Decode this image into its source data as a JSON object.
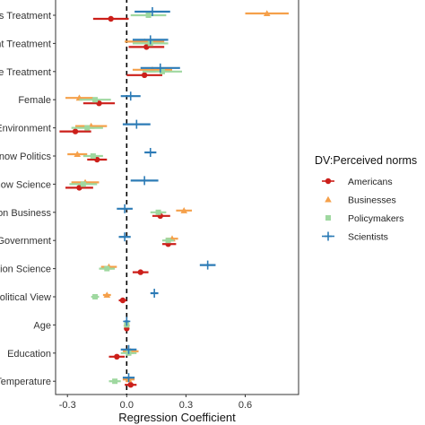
{
  "chart_data": {
    "type": "scatter",
    "subtype": "coefficient-plot-with-error-bars",
    "xlabel": "Regression Coefficient",
    "xlim": [
      -0.36,
      0.87
    ],
    "xticks": [
      -0.3,
      0.0,
      0.3,
      0.6
    ],
    "xtick_labels": [
      "-0.3",
      "0.0",
      "0.3",
      "0.6"
    ],
    "reference_line": 0,
    "grid": false,
    "categories": [
      "ss Treatment",
      "nt Treatment",
      "ce Treatment",
      "Female",
      "Environment",
      "Know Politics",
      "now Science",
      "on Business",
      "oGovernment",
      "tion Science",
      "Political View",
      "Age",
      "Education",
      "Temperature"
    ],
    "legend": {
      "title": "DV:Perceived norms",
      "position": "right",
      "entries": [
        "Americans",
        "Businesses",
        "Policymakers",
        "Scientists"
      ]
    },
    "series": [
      {
        "name": "Americans",
        "color": "#cc1f1a",
        "marker": "circle",
        "points": [
          {
            "y": 0,
            "x": -0.08,
            "lo": -0.17,
            "hi": 0.01
          },
          {
            "y": 1,
            "x": 0.1,
            "lo": 0.01,
            "hi": 0.19
          },
          {
            "y": 2,
            "x": 0.09,
            "lo": 0.0,
            "hi": 0.18
          },
          {
            "y": 3,
            "x": -0.14,
            "lo": -0.22,
            "hi": -0.06
          },
          {
            "y": 4,
            "x": -0.26,
            "lo": -0.34,
            "hi": -0.18
          },
          {
            "y": 5,
            "x": -0.15,
            "lo": -0.2,
            "hi": -0.1
          },
          {
            "y": 6,
            "x": -0.24,
            "lo": -0.31,
            "hi": -0.17
          },
          {
            "y": 7,
            "x": 0.17,
            "lo": 0.13,
            "hi": 0.22
          },
          {
            "y": 8,
            "x": 0.21,
            "lo": 0.18,
            "hi": 0.25
          },
          {
            "y": 9,
            "x": 0.07,
            "lo": 0.03,
            "hi": 0.11
          },
          {
            "y": 10,
            "x": -0.02,
            "lo": -0.04,
            "hi": 0.0
          },
          {
            "y": 11,
            "x": 0.0,
            "lo": -0.01,
            "hi": 0.01
          },
          {
            "y": 12,
            "x": -0.05,
            "lo": -0.09,
            "hi": -0.01
          },
          {
            "y": 13,
            "x": 0.02,
            "lo": -0.01,
            "hi": 0.05
          }
        ]
      },
      {
        "name": "Businesses",
        "color": "#f5a04a",
        "marker": "triangle",
        "points": [
          {
            "y": 0,
            "x": 0.71,
            "lo": 0.6,
            "hi": 0.82
          },
          {
            "y": 1,
            "x": 0.09,
            "lo": -0.01,
            "hi": 0.19
          },
          {
            "y": 2,
            "x": 0.13,
            "lo": 0.03,
            "hi": 0.23
          },
          {
            "y": 3,
            "x": -0.24,
            "lo": -0.31,
            "hi": -0.17
          },
          {
            "y": 4,
            "x": -0.18,
            "lo": -0.26,
            "hi": -0.1
          },
          {
            "y": 5,
            "x": -0.25,
            "lo": -0.3,
            "hi": -0.2
          },
          {
            "y": 6,
            "x": -0.21,
            "lo": -0.28,
            "hi": -0.14
          },
          {
            "y": 7,
            "x": 0.29,
            "lo": 0.25,
            "hi": 0.33
          },
          {
            "y": 8,
            "x": 0.23,
            "lo": 0.2,
            "hi": 0.26
          },
          {
            "y": 9,
            "x": -0.09,
            "lo": -0.13,
            "hi": -0.05
          },
          {
            "y": 10,
            "x": -0.1,
            "lo": -0.12,
            "hi": -0.08
          },
          {
            "y": 11,
            "x": 0.0,
            "lo": -0.01,
            "hi": 0.01
          },
          {
            "y": 12,
            "x": 0.02,
            "lo": -0.02,
            "hi": 0.06
          },
          {
            "y": 13,
            "x": 0.01,
            "lo": -0.02,
            "hi": 0.04
          }
        ]
      },
      {
        "name": "Policymakers",
        "color": "#9fd8a0",
        "marker": "square",
        "points": [
          {
            "y": 0,
            "x": 0.11,
            "lo": 0.02,
            "hi": 0.2
          },
          {
            "y": 1,
            "x": 0.12,
            "lo": 0.03,
            "hi": 0.21
          },
          {
            "y": 2,
            "x": 0.18,
            "lo": 0.08,
            "hi": 0.28
          },
          {
            "y": 3,
            "x": -0.16,
            "lo": -0.24,
            "hi": -0.08
          },
          {
            "y": 4,
            "x": -0.2,
            "lo": -0.28,
            "hi": -0.12
          },
          {
            "y": 5,
            "x": -0.17,
            "lo": -0.22,
            "hi": -0.12
          },
          {
            "y": 6,
            "x": -0.22,
            "lo": -0.29,
            "hi": -0.15
          },
          {
            "y": 7,
            "x": 0.16,
            "lo": 0.12,
            "hi": 0.2
          },
          {
            "y": 8,
            "x": 0.21,
            "lo": 0.18,
            "hi": 0.24
          },
          {
            "y": 9,
            "x": -0.1,
            "lo": -0.14,
            "hi": -0.06
          },
          {
            "y": 10,
            "x": -0.16,
            "lo": -0.18,
            "hi": -0.14
          },
          {
            "y": 11,
            "x": 0.0,
            "lo": -0.01,
            "hi": 0.01
          },
          {
            "y": 12,
            "x": 0.01,
            "lo": -0.03,
            "hi": 0.05
          },
          {
            "y": 13,
            "x": -0.06,
            "lo": -0.09,
            "hi": -0.03
          }
        ]
      },
      {
        "name": "Scientists",
        "color": "#2c7bb6",
        "marker": "plus",
        "points": [
          {
            "y": 0,
            "x": 0.13,
            "lo": 0.04,
            "hi": 0.22
          },
          {
            "y": 1,
            "x": 0.12,
            "lo": 0.03,
            "hi": 0.21
          },
          {
            "y": 2,
            "x": 0.17,
            "lo": 0.07,
            "hi": 0.27
          },
          {
            "y": 3,
            "x": 0.02,
            "lo": -0.03,
            "hi": 0.07
          },
          {
            "y": 4,
            "x": 0.05,
            "lo": -0.02,
            "hi": 0.12
          },
          {
            "y": 5,
            "x": 0.12,
            "lo": 0.09,
            "hi": 0.15
          },
          {
            "y": 6,
            "x": 0.09,
            "lo": 0.02,
            "hi": 0.16
          },
          {
            "y": 7,
            "x": -0.01,
            "lo": -0.05,
            "hi": 0.03
          },
          {
            "y": 8,
            "x": -0.01,
            "lo": -0.04,
            "hi": 0.02
          },
          {
            "y": 9,
            "x": 0.41,
            "lo": 0.37,
            "hi": 0.45
          },
          {
            "y": 10,
            "x": 0.14,
            "lo": 0.12,
            "hi": 0.16
          },
          {
            "y": 11,
            "x": 0.0,
            "lo": -0.01,
            "hi": 0.01
          },
          {
            "y": 12,
            "x": 0.01,
            "lo": -0.03,
            "hi": 0.05
          },
          {
            "y": 13,
            "x": 0.01,
            "lo": -0.02,
            "hi": 0.04
          }
        ]
      }
    ]
  }
}
